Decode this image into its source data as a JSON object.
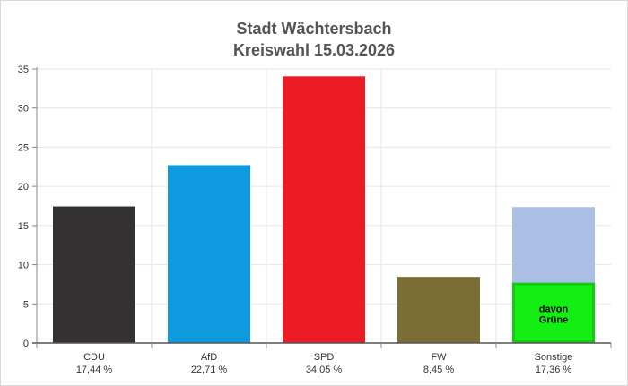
{
  "chart_data": {
    "type": "bar",
    "title": "Stadt Wächtersbach",
    "subtitle": "Kreiswahl 15.03.2026",
    "xlabel": "",
    "ylabel": "",
    "ylim": [
      0,
      35
    ],
    "yticks": [
      0,
      5,
      10,
      15,
      20,
      25,
      30,
      35
    ],
    "grid": true,
    "categories": [
      "CDU",
      "AfD",
      "SPD",
      "FW",
      "Sonstige"
    ],
    "value_labels": [
      "17,44 %",
      "22,71 %",
      "34,05 %",
      "8,45 %",
      "17,36 %"
    ],
    "values": [
      17.44,
      22.71,
      34.05,
      8.45,
      17.36
    ],
    "colors": [
      "#333132",
      "#0f9ae0",
      "#ec1c24",
      "#7b6e35",
      "#aabfe3"
    ],
    "sub_bar": {
      "category": "Sonstige",
      "value": 7.7,
      "label_lines": [
        "davon",
        "Grüne"
      ],
      "color": "#13ee13",
      "border_color": "#11cc11"
    }
  }
}
